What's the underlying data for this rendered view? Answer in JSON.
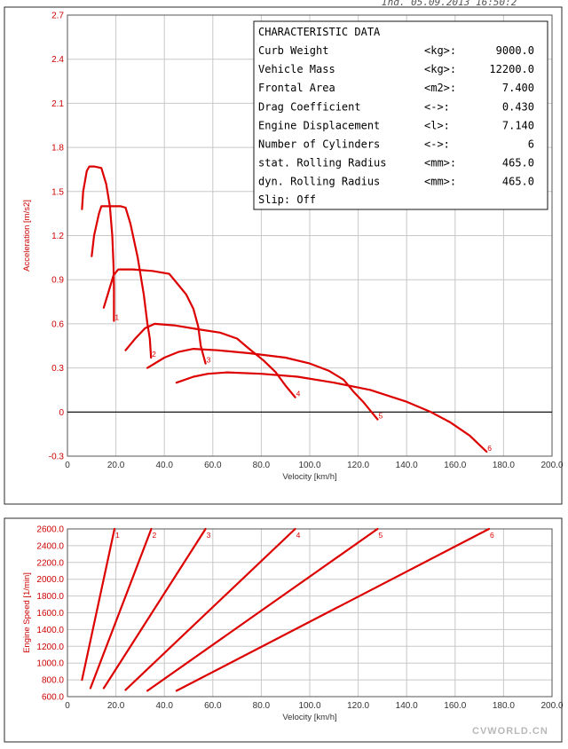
{
  "header_text": "Ind. 05.09.2013 16:50:2",
  "watermark": "CVWORLD.CN",
  "info_box": {
    "title": "CHARACTERISTIC DATA",
    "rows": [
      {
        "label": "Curb Weight",
        "unit": "<kg>:",
        "value": "9000.0"
      },
      {
        "label": "Vehicle Mass",
        "unit": "<kg>:",
        "value": "12200.0"
      },
      {
        "label": "Frontal Area",
        "unit": "<m2>:",
        "value": "7.400"
      },
      {
        "label": "Drag Coefficient",
        "unit": "<->:",
        "value": "0.430"
      },
      {
        "label": "Engine Displacement",
        "unit": "<l>:",
        "value": "7.140"
      },
      {
        "label": "Number of Cylinders",
        "unit": "<->:",
        "value": "6"
      },
      {
        "label": "stat. Rolling Radius",
        "unit": "<mm>:",
        "value": "465.0"
      },
      {
        "label": "dyn.  Rolling Radius",
        "unit": "<mm>:",
        "value": "465.0"
      }
    ],
    "footer": "Slip: Off"
  },
  "chart_data": [
    {
      "type": "line",
      "xlabel": "Velocity [km/h]",
      "ylabel": "Acceleration [m/s2]",
      "xlim": [
        0,
        200
      ],
      "ylim": [
        -0.3,
        2.7
      ],
      "x_ticks": [
        "0",
        "20.0",
        "40.0",
        "60.0",
        "80.0",
        "100.0",
        "120.0",
        "140.0",
        "160.0",
        "180.0",
        "200.0"
      ],
      "y_ticks": [
        "-0.3",
        "0",
        "0.3",
        "0.6",
        "0.9",
        "1.2",
        "1.5",
        "1.8",
        "2.1",
        "2.4",
        "2.7"
      ],
      "grid": true,
      "series": [
        {
          "name": "1",
          "points": [
            [
              6,
              1.38
            ],
            [
              6.5,
              1.5
            ],
            [
              8,
              1.64
            ],
            [
              9,
              1.67
            ],
            [
              11,
              1.67
            ],
            [
              14,
              1.66
            ],
            [
              16,
              1.55
            ],
            [
              17.5,
              1.4
            ],
            [
              18.5,
              1.2
            ],
            [
              19,
              1.0
            ],
            [
              19.2,
              0.85
            ],
            [
              19.2,
              0.62
            ]
          ]
        },
        {
          "name": "2",
          "points": [
            [
              10,
              1.06
            ],
            [
              11,
              1.2
            ],
            [
              13,
              1.35
            ],
            [
              14,
              1.4
            ],
            [
              17,
              1.4
            ],
            [
              22,
              1.4
            ],
            [
              24,
              1.39
            ],
            [
              26,
              1.28
            ],
            [
              29,
              1.05
            ],
            [
              31.5,
              0.8
            ],
            [
              33,
              0.6
            ],
            [
              34,
              0.5
            ],
            [
              34.5,
              0.37
            ]
          ]
        },
        {
          "name": "3",
          "points": [
            [
              15,
              0.71
            ],
            [
              17,
              0.82
            ],
            [
              19,
              0.93
            ],
            [
              21,
              0.97
            ],
            [
              27,
              0.97
            ],
            [
              35,
              0.96
            ],
            [
              42,
              0.94
            ],
            [
              45,
              0.88
            ],
            [
              49,
              0.8
            ],
            [
              52,
              0.7
            ],
            [
              54,
              0.58
            ],
            [
              55,
              0.45
            ],
            [
              57,
              0.33
            ]
          ]
        },
        {
          "name": "4",
          "points": [
            [
              24,
              0.42
            ],
            [
              28,
              0.5
            ],
            [
              32,
              0.57
            ],
            [
              36,
              0.6
            ],
            [
              44,
              0.59
            ],
            [
              55,
              0.56
            ],
            [
              63,
              0.54
            ],
            [
              70,
              0.5
            ],
            [
              75,
              0.43
            ],
            [
              81,
              0.35
            ],
            [
              86,
              0.27
            ],
            [
              90,
              0.18
            ],
            [
              94,
              0.1
            ]
          ]
        },
        {
          "name": "5",
          "points": [
            [
              33,
              0.3
            ],
            [
              40,
              0.37
            ],
            [
              46,
              0.41
            ],
            [
              52,
              0.43
            ],
            [
              62,
              0.42
            ],
            [
              75,
              0.4
            ],
            [
              90,
              0.37
            ],
            [
              100,
              0.33
            ],
            [
              108,
              0.28
            ],
            [
              114,
              0.22
            ],
            [
              118,
              0.14
            ],
            [
              122,
              0.07
            ],
            [
              128,
              -0.05
            ]
          ]
        },
        {
          "name": "6",
          "points": [
            [
              45,
              0.2
            ],
            [
              52,
              0.24
            ],
            [
              58,
              0.26
            ],
            [
              66,
              0.27
            ],
            [
              80,
              0.26
            ],
            [
              95,
              0.24
            ],
            [
              110,
              0.2
            ],
            [
              125,
              0.15
            ],
            [
              140,
              0.07
            ],
            [
              150,
              0.0
            ],
            [
              158,
              -0.07
            ],
            [
              166,
              -0.16
            ],
            [
              173,
              -0.27
            ]
          ]
        }
      ]
    },
    {
      "type": "line",
      "xlabel": "Velocity [km/h]",
      "ylabel": "Engine Speed [1/min]",
      "xlim": [
        0,
        200
      ],
      "ylim": [
        600,
        2600
      ],
      "x_ticks": [
        "0",
        "20.0",
        "40.0",
        "60.0",
        "80.0",
        "100.0",
        "120.0",
        "140.0",
        "160.0",
        "180.0",
        "200.0"
      ],
      "y_ticks": [
        "600.0",
        "800.0",
        "1000.0",
        "1200.0",
        "1400.0",
        "1600.0",
        "1800.0",
        "2000.0",
        "2200.0",
        "2400.0",
        "2600.0"
      ],
      "grid": true,
      "series": [
        {
          "name": "1",
          "points": [
            [
              6,
              800
            ],
            [
              19.4,
              2600
            ]
          ]
        },
        {
          "name": "2",
          "points": [
            [
              9.5,
              700
            ],
            [
              34.6,
              2600
            ]
          ]
        },
        {
          "name": "3",
          "points": [
            [
              15,
              700
            ],
            [
              57,
              2600
            ]
          ]
        },
        {
          "name": "4",
          "points": [
            [
              24,
              680
            ],
            [
              94,
              2600
            ]
          ]
        },
        {
          "name": "5",
          "points": [
            [
              33,
              670
            ],
            [
              128,
              2600
            ]
          ]
        },
        {
          "name": "6",
          "points": [
            [
              45,
              670
            ],
            [
              174,
              2600
            ]
          ]
        }
      ]
    }
  ]
}
